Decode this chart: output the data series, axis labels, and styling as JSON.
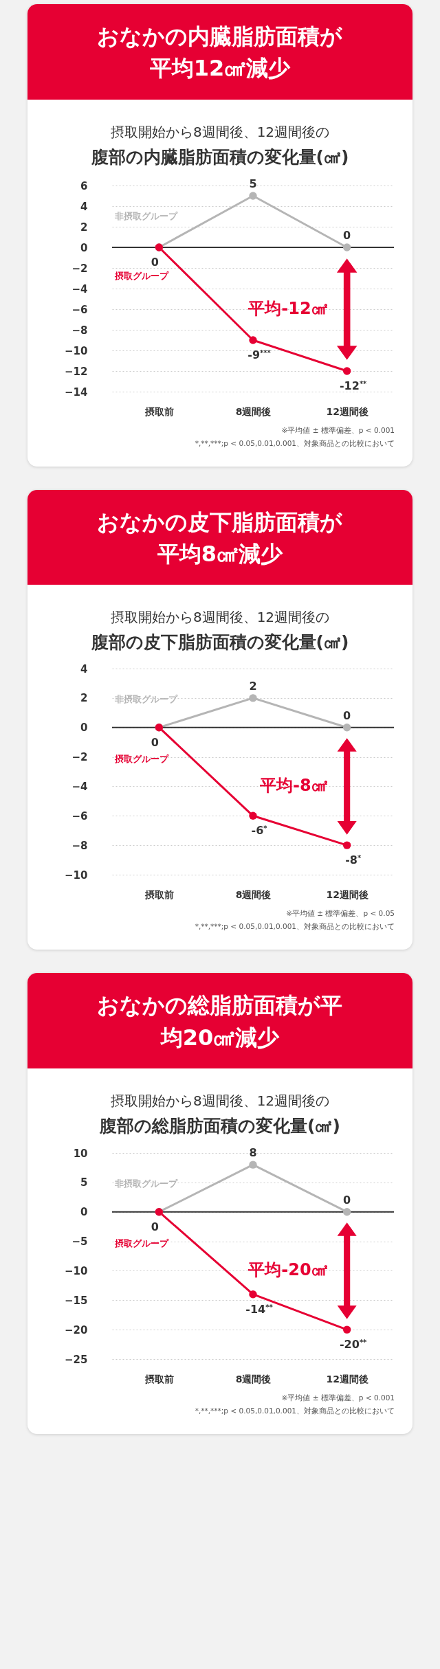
{
  "chart_data": [
    {
      "type": "line",
      "title": "腹部の内臓脂肪面積の変化量(㎠)",
      "subtitle": "摂取開始から8週間後、12週間後の",
      "categories": [
        "摂取前",
        "8週間後",
        "12週間後"
      ],
      "series": [
        {
          "name": "非摂取グループ",
          "color": "#b5b5b5",
          "values": [
            0,
            5,
            0
          ],
          "value_labels": [
            null,
            "5",
            "0"
          ]
        },
        {
          "name": "摂取グループ",
          "color": "#e60033",
          "values": [
            0,
            -9,
            -12
          ],
          "value_labels": [
            "0",
            "-9$^{***}$",
            "-12$^{**}$"
          ]
        }
      ],
      "ylim": [
        -14,
        6
      ],
      "yticks": [
        -14,
        -12,
        -10,
        -8,
        -6,
        -4,
        -2,
        0,
        2,
        4,
        6
      ],
      "grid": "y",
      "legend": false,
      "marker": "circle",
      "line_style": "solid",
      "ref_lines": [
        {
          "axis": "y",
          "value": 0,
          "color": "#333333"
        }
      ],
      "annotations": [
        "おなかの内臓脂肪面積が平均12㎠減少",
        "平均-12㎠",
        "※平均値 ± 標準偏差、p < 0.001",
        "*,**,***;p < 0.05,0.01,0.001、対象商品との比較において"
      ]
    },
    {
      "type": "line",
      "title": "腹部の皮下脂肪面積の変化量(㎠)",
      "subtitle": "摂取開始から8週間後、12週間後の",
      "categories": [
        "摂取前",
        "8週間後",
        "12週間後"
      ],
      "series": [
        {
          "name": "非摂取グループ",
          "color": "#b5b5b5",
          "values": [
            0,
            2,
            0
          ],
          "value_labels": [
            null,
            "2",
            "0"
          ]
        },
        {
          "name": "摂取グループ",
          "color": "#e60033",
          "values": [
            0,
            -6,
            -8
          ],
          "value_labels": [
            "0",
            "-6$^{*}$",
            "-8$^{*}$"
          ]
        }
      ],
      "ylim": [
        -10,
        4
      ],
      "yticks": [
        -10,
        -8,
        -6,
        -4,
        -2,
        0,
        2,
        4
      ],
      "grid": "y",
      "legend": false,
      "marker": "circle",
      "line_style": "solid",
      "ref_lines": [
        {
          "axis": "y",
          "value": 0,
          "color": "#333333"
        }
      ],
      "annotations": [
        "おなかの皮下脂肪面積が平均8㎠減少",
        "平均-8㎠",
        "※平均値 ± 標準偏差、p < 0.05",
        "*,**,***;p < 0.05,0.01,0.001、対象商品との比較において"
      ]
    },
    {
      "type": "line",
      "title": "腹部の総脂肪面積の変化量(㎠)",
      "subtitle": "摂取開始から8週間後、12週間後の",
      "categories": [
        "摂取前",
        "8週間後",
        "12週間後"
      ],
      "series": [
        {
          "name": "非摂取グループ",
          "color": "#b5b5b5",
          "values": [
            0,
            8,
            0
          ],
          "value_labels": [
            null,
            "8",
            "0"
          ]
        },
        {
          "name": "摂取グループ",
          "color": "#e60033",
          "values": [
            0,
            -14,
            -20
          ],
          "value_labels": [
            "0",
            "-14$^{**}$",
            "-20$^{**}$"
          ]
        }
      ],
      "ylim": [
        -25,
        10
      ],
      "yticks": [
        -25,
        -20,
        -15,
        -10,
        -5,
        0,
        5,
        10
      ],
      "grid": "y",
      "legend": false,
      "marker": "circle",
      "line_style": "solid",
      "ref_lines": [
        {
          "axis": "y",
          "value": 0,
          "color": "#333333"
        }
      ],
      "annotations": [
        "おなかの総脂肪面積が平均20㎠減少",
        "平均-20㎠",
        "※平均値 ± 標準偏差、p < 0.001",
        "*,**,***;p < 0.05,0.01,0.001、対象商品との比較において"
      ]
    }
  ]
}
